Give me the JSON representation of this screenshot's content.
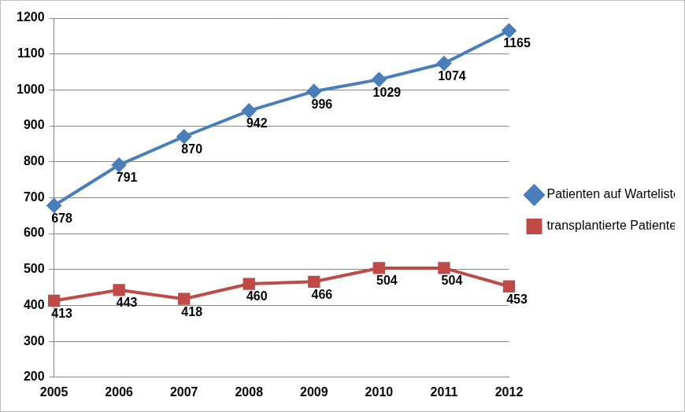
{
  "chart_data": {
    "type": "line",
    "categories": [
      "2005",
      "2006",
      "2007",
      "2008",
      "2009",
      "2010",
      "2011",
      "2012"
    ],
    "series": [
      {
        "name": "Patienten auf Warteliste",
        "color": "#4a7ebb",
        "marker": "diamond",
        "values": [
          678,
          791,
          870,
          942,
          996,
          1029,
          1074,
          1165
        ]
      },
      {
        "name": "transplantierte Patienten",
        "color": "#be4b48",
        "marker": "square",
        "values": [
          413,
          443,
          418,
          460,
          466,
          504,
          504,
          453
        ]
      }
    ],
    "ylim": [
      200,
      1200
    ],
    "yticks": [
      200,
      300,
      400,
      500,
      600,
      700,
      800,
      900,
      1000,
      1100,
      1200
    ],
    "grid": true,
    "legend": "right",
    "data_labels": true
  }
}
